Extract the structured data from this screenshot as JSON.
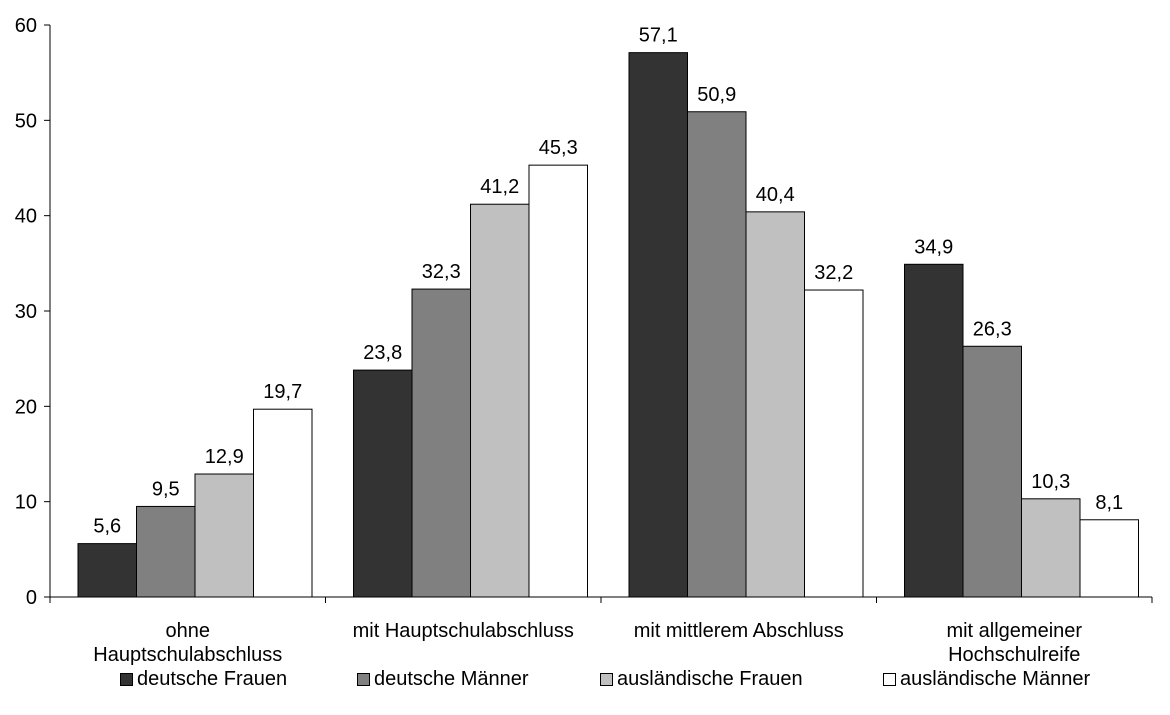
{
  "chart_data": {
    "type": "bar",
    "categories": [
      [
        "ohne",
        "Hauptschulabschluss"
      ],
      [
        "mit Hauptschulabschluss"
      ],
      [
        "mit mittlerem Abschluss"
      ],
      [
        "mit allgemeiner",
        "Hochschulreife"
      ]
    ],
    "series": [
      {
        "name": "deutsche Frauen",
        "values": [
          5.6,
          23.8,
          57.1,
          34.9
        ],
        "labels": [
          "5,6",
          "23,8",
          "57,1",
          "34,9"
        ],
        "color": "#333333"
      },
      {
        "name": "deutsche Männer",
        "values": [
          9.5,
          32.3,
          50.9,
          26.3
        ],
        "labels": [
          "9,5",
          "32,3",
          "50,9",
          "26,3"
        ],
        "color": "#808080"
      },
      {
        "name": "ausländische Frauen",
        "values": [
          12.9,
          41.2,
          40.4,
          10.3
        ],
        "labels": [
          "12,9",
          "41,2",
          "40,4",
          "10,3"
        ],
        "color": "#c0c0c0"
      },
      {
        "name": "ausländische Männer",
        "values": [
          19.7,
          45.3,
          32.2,
          8.1
        ],
        "labels": [
          "19,7",
          "45,3",
          "32,2",
          "8,1"
        ],
        "color": "#ffffff"
      }
    ],
    "ylim": [
      0,
      60
    ],
    "yticks": [
      "0",
      "10",
      "20",
      "30",
      "40",
      "50",
      "60"
    ],
    "grid": false,
    "legend_position": "bottom",
    "title": "",
    "xlabel": "",
    "ylabel": ""
  }
}
